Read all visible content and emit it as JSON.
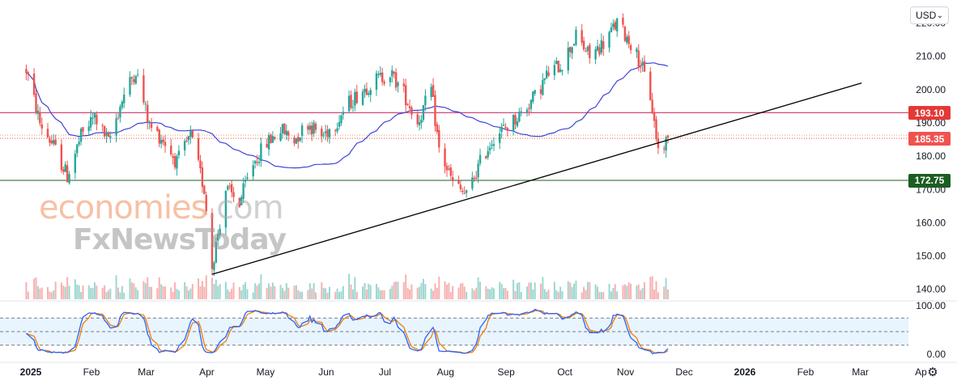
{
  "currency": {
    "label": "USD"
  },
  "watermark": {
    "line1": "economies",
    "line1_tail": ".com",
    "line2": "FxNewsToday"
  },
  "badges": [
    {
      "value": "193.10",
      "color": "#e53935"
    },
    {
      "value": "185.35",
      "color": "#ef5350"
    },
    {
      "value": "172.75",
      "color": "#1b5e20"
    }
  ],
  "colors": {
    "up": "#26a69a",
    "down": "#ef5350",
    "ma": "#3d45d6",
    "blue_line": "#2962ff",
    "orange_line": "#f57c00"
  },
  "icons": {
    "settings": "gear-icon"
  },
  "chart_data": {
    "type": "candlestick",
    "price_axis": {
      "ticks": [
        140,
        150,
        160,
        170,
        180,
        190,
        200,
        210,
        220
      ],
      "labels": [
        "140.00",
        "150.00",
        "160.00",
        "170.00",
        "180.00",
        "190.00",
        "200.00",
        "210.00",
        "220.00"
      ],
      "range": [
        137,
        225
      ]
    },
    "time_axis": {
      "labels": [
        "2025",
        "Feb",
        "Mar",
        "Apr",
        "May",
        "Jun",
        "Jul",
        "Aug",
        "Sep",
        "Oct",
        "Nov",
        "Dec",
        "2026",
        "Feb",
        "Mar",
        "Ap"
      ],
      "bold": [
        "2025",
        "2026"
      ]
    },
    "horizontal_levels": [
      {
        "value": 193.1,
        "color": "#c2185b",
        "style": "solid"
      },
      {
        "value": 185.35,
        "color": "#ef5350",
        "style": "dotted"
      },
      {
        "value": 172.75,
        "color": "#1b5e20",
        "style": "solid"
      }
    ],
    "trendline": {
      "from": {
        "date": "2025-04-07",
        "value": 144.5
      },
      "to": {
        "date": "2026-03-05",
        "value": 202
      }
    },
    "oscillator": {
      "range": [
        0,
        100
      ],
      "labels": [
        "100.00",
        "0.00"
      ],
      "band": [
        20,
        80
      ],
      "mid": 50
    },
    "ohlc_trend_weekly": [
      {
        "w": "2025-01-02",
        "c": 206
      },
      {
        "w": "2025-01-09",
        "c": 190
      },
      {
        "w": "2025-01-16",
        "c": 183
      },
      {
        "w": "2025-01-23",
        "c": 174
      },
      {
        "w": "2025-01-30",
        "c": 186
      },
      {
        "w": "2025-02-06",
        "c": 192
      },
      {
        "w": "2025-02-13",
        "c": 184
      },
      {
        "w": "2025-02-20",
        "c": 197
      },
      {
        "w": "2025-02-27",
        "c": 206
      },
      {
        "w": "2025-03-06",
        "c": 189
      },
      {
        "w": "2025-03-13",
        "c": 185
      },
      {
        "w": "2025-03-20",
        "c": 178
      },
      {
        "w": "2025-03-27",
        "c": 186
      },
      {
        "w": "2025-04-03",
        "c": 170
      },
      {
        "w": "2025-04-07",
        "c": 147
      },
      {
        "w": "2025-04-14",
        "c": 170
      },
      {
        "w": "2025-04-21",
        "c": 166
      },
      {
        "w": "2025-04-28",
        "c": 178
      },
      {
        "w": "2025-05-05",
        "c": 184
      },
      {
        "w": "2025-05-12",
        "c": 188
      },
      {
        "w": "2025-05-19",
        "c": 185
      },
      {
        "w": "2025-05-26",
        "c": 190
      },
      {
        "w": "2025-06-02",
        "c": 186
      },
      {
        "w": "2025-06-09",
        "c": 190
      },
      {
        "w": "2025-06-16",
        "c": 196
      },
      {
        "w": "2025-06-23",
        "c": 200
      },
      {
        "w": "2025-06-30",
        "c": 203
      },
      {
        "w": "2025-07-07",
        "c": 205
      },
      {
        "w": "2025-07-14",
        "c": 199
      },
      {
        "w": "2025-07-21",
        "c": 190
      },
      {
        "w": "2025-07-28",
        "c": 200
      },
      {
        "w": "2025-08-01",
        "c": 182
      },
      {
        "w": "2025-08-08",
        "c": 172
      },
      {
        "w": "2025-08-15",
        "c": 168
      },
      {
        "w": "2025-08-22",
        "c": 178
      },
      {
        "w": "2025-08-29",
        "c": 186
      },
      {
        "w": "2025-09-05",
        "c": 189
      },
      {
        "w": "2025-09-12",
        "c": 193
      },
      {
        "w": "2025-09-19",
        "c": 198
      },
      {
        "w": "2025-09-26",
        "c": 205
      },
      {
        "w": "2025-10-03",
        "c": 208
      },
      {
        "w": "2025-10-10",
        "c": 216
      },
      {
        "w": "2025-10-17",
        "c": 210
      },
      {
        "w": "2025-10-24",
        "c": 214
      },
      {
        "w": "2025-10-31",
        "c": 220
      },
      {
        "w": "2025-11-07",
        "c": 214
      },
      {
        "w": "2025-11-12",
        "c": 208
      },
      {
        "w": "2025-11-17",
        "c": 198
      },
      {
        "w": "2025-11-21",
        "c": 182
      },
      {
        "w": "2025-11-26",
        "c": 185
      }
    ]
  }
}
